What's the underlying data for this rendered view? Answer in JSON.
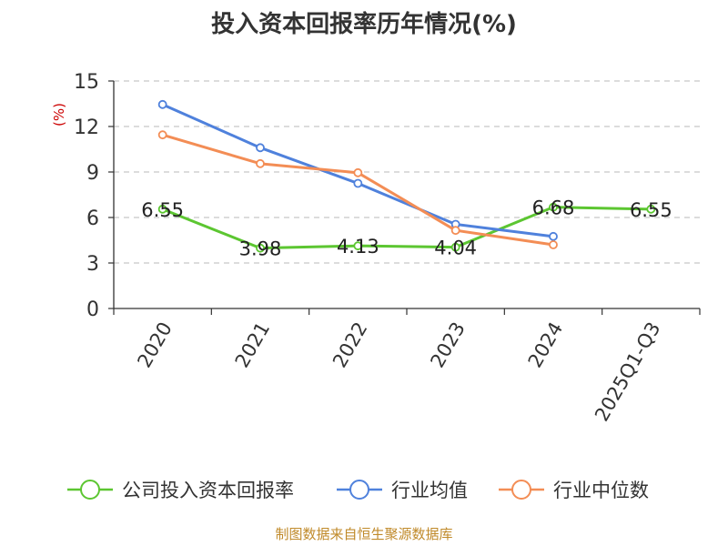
{
  "chart_data": {
    "type": "line",
    "title": "投入资本回报率历年情况(%)",
    "ylabel": "(%)",
    "xlabel": "",
    "categories": [
      "2020",
      "2021",
      "2022",
      "2023",
      "2024",
      "2025Q1-Q3"
    ],
    "ylim": [
      0,
      15
    ],
    "yticks": [
      0,
      3,
      6,
      9,
      12,
      15
    ],
    "grid": true,
    "legend_position": "bottom",
    "series": [
      {
        "name": "公司投入资本回报率",
        "color": "#5cc631",
        "values": [
          6.55,
          3.98,
          4.13,
          4.04,
          6.68,
          6.55
        ],
        "labels": [
          "6.55",
          "3.98",
          "4.13",
          "4.04",
          "6.68",
          "6.55"
        ]
      },
      {
        "name": "行业均值",
        "color": "#4f81dc",
        "values": [
          13.45,
          10.6,
          8.25,
          5.55,
          4.75,
          null
        ]
      },
      {
        "name": "行业中位数",
        "color": "#f38d55",
        "values": [
          11.45,
          9.55,
          8.95,
          5.15,
          4.2,
          null
        ]
      }
    ]
  },
  "source": "制图数据来自恒生聚源数据库"
}
